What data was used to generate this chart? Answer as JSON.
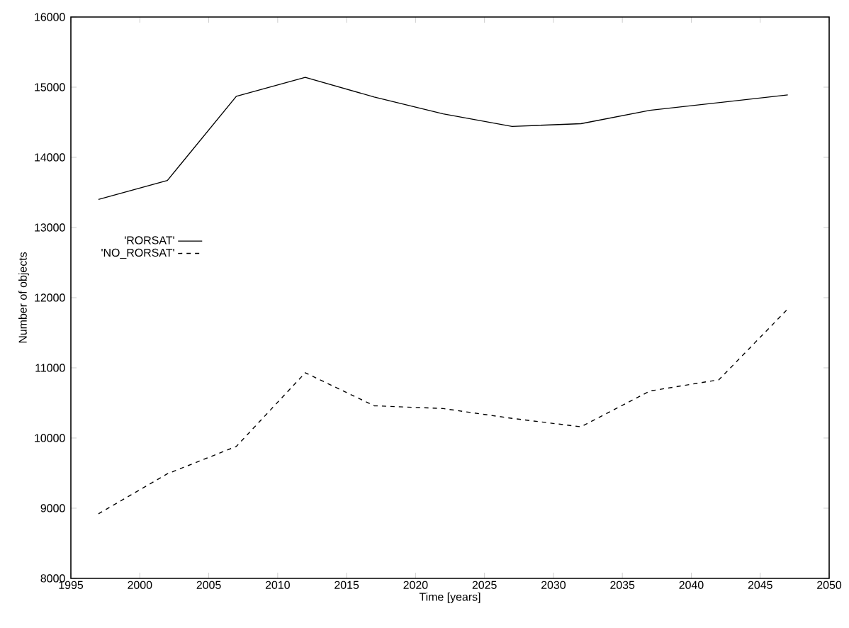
{
  "chart_data": {
    "type": "line",
    "xlabel": "Time [years]",
    "ylabel": "Number of objects",
    "x": [
      1997,
      2002,
      2007,
      2012,
      2017,
      2022,
      2027,
      2032,
      2037,
      2042,
      2047
    ],
    "series": [
      {
        "name": "'RORSAT'",
        "color": "#000000",
        "line_style": "solid",
        "values": [
          13400,
          13670,
          14870,
          15140,
          14860,
          14620,
          14440,
          14480,
          14670,
          14780,
          14890
        ]
      },
      {
        "name": "'NO_RORSAT'",
        "color": "#000000",
        "line_style": "dashed",
        "values": [
          8920,
          9490,
          9880,
          10930,
          10460,
          10420,
          10280,
          10160,
          10670,
          10830,
          11840
        ]
      }
    ],
    "xlim": [
      1995,
      2050
    ],
    "xticks": [
      1995,
      2000,
      2005,
      2010,
      2015,
      2020,
      2025,
      2030,
      2035,
      2040,
      2045,
      2050
    ],
    "ylim": [
      8000,
      16000
    ],
    "yticks": [
      8000,
      9000,
      10000,
      11000,
      12000,
      13000,
      14000,
      15000,
      16000
    ],
    "grid": false,
    "legend": "left",
    "marker": "none"
  }
}
